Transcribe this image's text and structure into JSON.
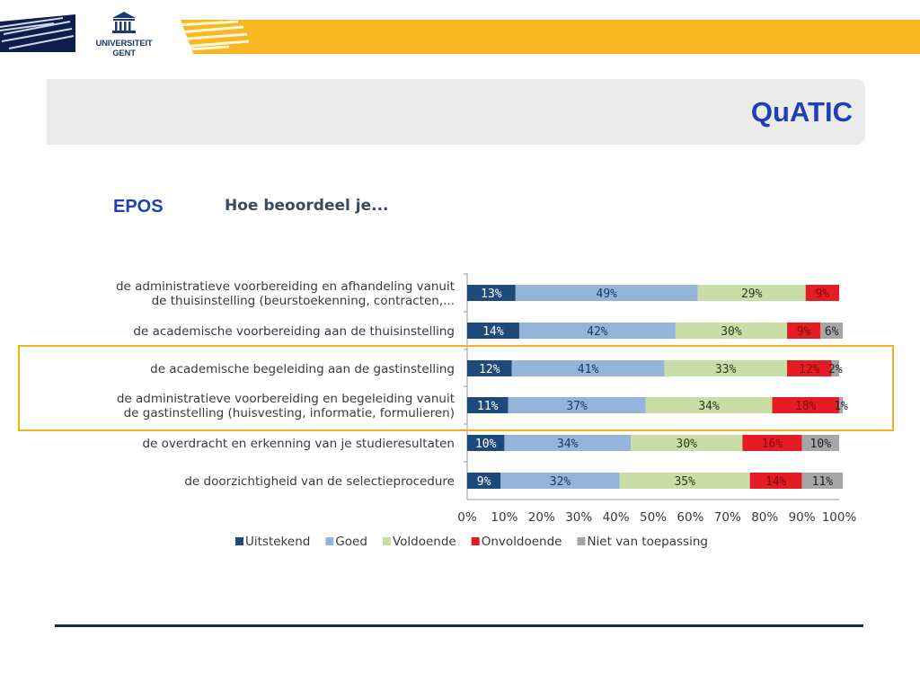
{
  "header": {
    "logo_line1": "UNIVERSITEIT",
    "logo_line2": "GENT",
    "app_title": "QuATIC"
  },
  "section_label": "EPOS",
  "chart_question": "Hoe beoordeel je...",
  "colors": {
    "brand_yellow": "#f7b824",
    "brand_blue": "#1f3fb7",
    "highlight": "#f2b21c"
  },
  "chart_data": {
    "type": "bar",
    "orientation": "horizontal",
    "stacked": "percent",
    "categories": [
      [
        "de administratieve voorbereiding en afhandeling vanuit",
        "de thuisinstelling (beurstoekenning, contracten,..."
      ],
      [
        "de academische voorbereiding aan de thuisinstelling"
      ],
      [
        "de academische begeleiding aan de gastinstelling"
      ],
      [
        "de administratieve voorbereiding en begeleiding vanuit",
        "de gastinstelling (huisvesting, informatie, formulieren)"
      ],
      [
        "de overdracht en erkenning van je studieresultaten"
      ],
      [
        "de doorzichtigheid van de selectieprocedure"
      ]
    ],
    "series": [
      {
        "name": "Uitstekend",
        "color": "#1d4a7a",
        "label_color": "#ffffff",
        "values": [
          13,
          14,
          12,
          11,
          10,
          9
        ]
      },
      {
        "name": "Goed",
        "color": "#94b4d9",
        "label_color": "#1b3a66",
        "values": [
          49,
          42,
          41,
          37,
          34,
          32
        ]
      },
      {
        "name": "Voldoende",
        "color": "#c8dea6",
        "label_color": "#2f3a1e",
        "values": [
          29,
          30,
          33,
          34,
          30,
          35
        ]
      },
      {
        "name": "Onvoldoende",
        "color": "#e51c23",
        "label_color": "#7a0b0e",
        "values": [
          9,
          9,
          12,
          18,
          16,
          14
        ]
      },
      {
        "name": "Niet van toepassing",
        "color": "#a6a6a6",
        "label_color": "#222222",
        "values": [
          0,
          6,
          2,
          1,
          10,
          11
        ]
      }
    ],
    "xticks": [
      "0%",
      "10%",
      "20%",
      "30%",
      "40%",
      "50%",
      "60%",
      "70%",
      "80%",
      "90%",
      "100%"
    ],
    "xlim": [
      0,
      100
    ],
    "grid": false,
    "legend_position": "bottom",
    "highlighted_rows": [
      2,
      3
    ]
  }
}
